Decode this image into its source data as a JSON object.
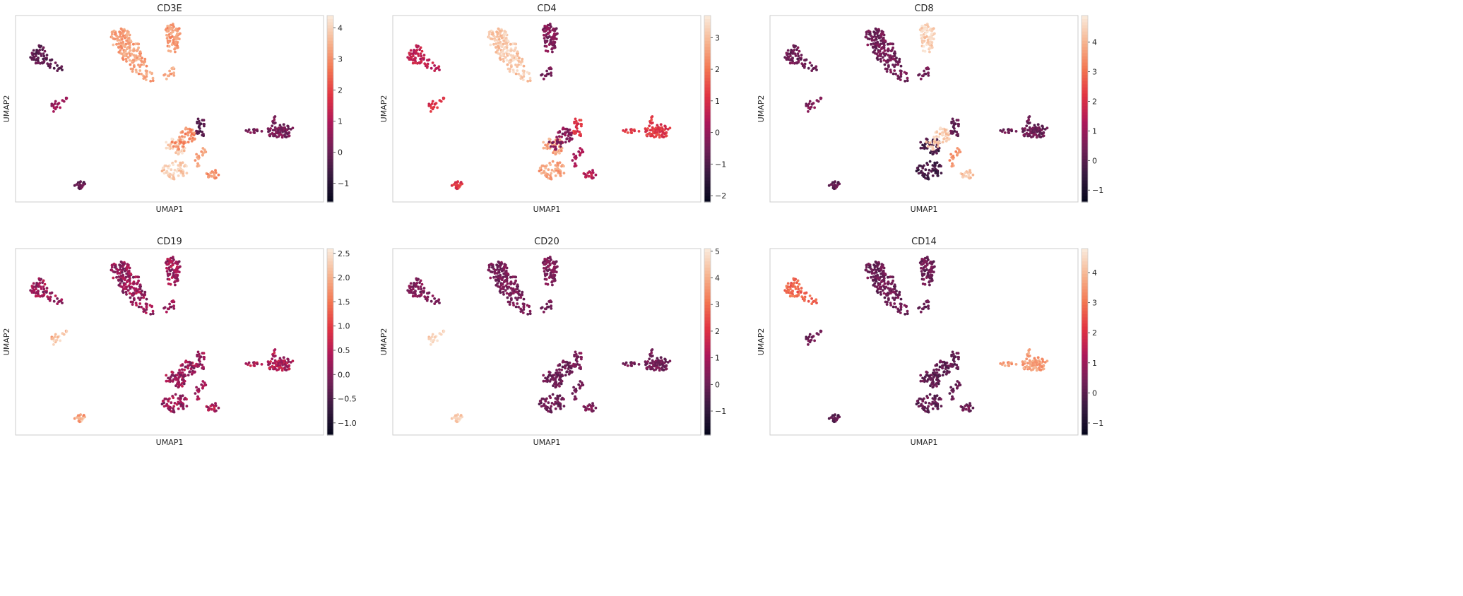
{
  "figure": {
    "palette": [
      "#03051a",
      "#35193e",
      "#701f57",
      "#ad1759",
      "#e13342",
      "#f37651",
      "#f6b48f",
      "#faebdd"
    ],
    "frame_color": "#cccccc"
  },
  "chart_data": [
    {
      "type": "scatter",
      "title": "CD3E",
      "xlabel": "UMAP1",
      "ylabel": "UMAP2",
      "grid": false,
      "colorbar": {
        "min": -1.6,
        "max": 4.4,
        "ticks": [
          -1,
          0,
          1,
          2,
          3,
          4
        ]
      },
      "cluster_values": {
        "A": 3.3,
        "B": 3.2,
        "C": -0.2,
        "D": 0.6,
        "E": 3.4,
        "F": -0.3,
        "G": 0.2,
        "H": 3.9,
        "I": 3.0,
        "J": 3.3,
        "K": 3.0,
        "L": 0.0
      }
    },
    {
      "type": "scatter",
      "title": "CD4",
      "xlabel": "UMAP1",
      "ylabel": "UMAP2",
      "grid": false,
      "colorbar": {
        "min": -2.2,
        "max": 3.7,
        "ticks": [
          -2,
          -1,
          0,
          1,
          2,
          3
        ]
      },
      "cluster_values": {
        "A": 3.2,
        "B": -0.3,
        "C": 0.6,
        "D": 1.0,
        "E": -0.5,
        "F": 1.1,
        "G": 1.2,
        "H": 2.6,
        "I": -0.2,
        "J": 0.3,
        "K": 0.4,
        "L": 1.2
      }
    },
    {
      "type": "scatter",
      "title": "CD8",
      "xlabel": "UMAP1",
      "ylabel": "UMAP2",
      "grid": false,
      "colorbar": {
        "min": -1.4,
        "max": 4.9,
        "ticks": [
          -1,
          0,
          1,
          2,
          3,
          4
        ]
      },
      "cluster_values": {
        "A": 0.4,
        "B": 4.5,
        "C": 0.3,
        "D": 0.5,
        "E": 0.4,
        "F": 0.1,
        "G": 0.3,
        "H": -0.3,
        "I": 4.4,
        "J": 3.5,
        "K": 4.2,
        "L": 0.2
      }
    },
    {
      "type": "scatter",
      "title": "CD19",
      "xlabel": "UMAP1",
      "ylabel": "UMAP2",
      "grid": false,
      "colorbar": {
        "min": -1.25,
        "max": 2.6,
        "ticks": [
          -1.0,
          -0.5,
          0.0,
          0.5,
          1.0,
          1.5,
          2.0,
          2.5
        ]
      },
      "cluster_values": {
        "A": 0.2,
        "B": 0.25,
        "C": 0.2,
        "D": 2.1,
        "E": 0.2,
        "F": 0.15,
        "G": 0.4,
        "H": 0.2,
        "I": 0.2,
        "J": 0.3,
        "K": 0.3,
        "L": 2.0
      }
    },
    {
      "type": "scatter",
      "title": "CD20",
      "xlabel": "UMAP1",
      "ylabel": "UMAP2",
      "grid": false,
      "colorbar": {
        "min": -1.9,
        "max": 5.1,
        "ticks": [
          -1,
          0,
          1,
          2,
          3,
          4,
          5
        ]
      },
      "cluster_values": {
        "A": 0.2,
        "B": 0.3,
        "C": 0.3,
        "D": 4.6,
        "E": 0.1,
        "F": 0.2,
        "G": 0.1,
        "H": 0.0,
        "I": 0.0,
        "J": 0.1,
        "K": 0.2,
        "L": 4.6
      }
    },
    {
      "type": "scatter",
      "title": "CD14",
      "xlabel": "UMAP1",
      "ylabel": "UMAP2",
      "grid": false,
      "colorbar": {
        "min": -1.4,
        "max": 4.8,
        "ticks": [
          -1,
          0,
          1,
          2,
          3,
          4
        ]
      },
      "cluster_values": {
        "A": 0.3,
        "B": 0.3,
        "C": 2.8,
        "D": 0.2,
        "E": 0.2,
        "F": 0.1,
        "G": 3.6,
        "H": 0.1,
        "I": 0.1,
        "J": 0.2,
        "K": 0.2,
        "L": 0.1
      }
    }
  ]
}
